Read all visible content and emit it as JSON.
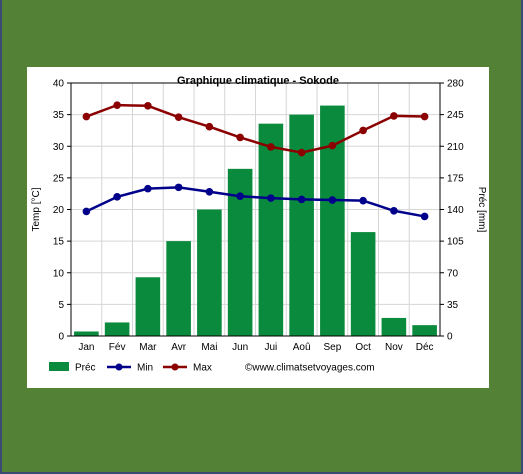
{
  "chart_data": {
    "type": "bar+line",
    "title": "Graphique climatique - Sokode",
    "ylabel_left": "Temp [°C]",
    "ylabel_right": "Préc [mm]",
    "categories": [
      "Jan",
      "Fév",
      "Mar",
      "Avr",
      "Mai",
      "Jun",
      "Jui",
      "Aoû",
      "Sep",
      "Oct",
      "Nov",
      "Déc"
    ],
    "ylim_left": [
      0,
      40
    ],
    "yticks_left": [
      0,
      5,
      10,
      15,
      20,
      25,
      30,
      35,
      40
    ],
    "ylim_right": [
      0,
      280
    ],
    "yticks_right": [
      0,
      35,
      70,
      105,
      140,
      175,
      210,
      245,
      280
    ],
    "grid": true,
    "legend_position": "bottom",
    "series": [
      {
        "name": "Préc",
        "kind": "bar",
        "axis": "right",
        "color": "#0a8a3c",
        "values": [
          5,
          15,
          65,
          105,
          140,
          185,
          235,
          245,
          255,
          115,
          20,
          12
        ]
      },
      {
        "name": "Min",
        "kind": "line",
        "axis": "left",
        "color": "#00008b",
        "values": [
          19.7,
          22.0,
          23.3,
          23.5,
          22.8,
          22.1,
          21.8,
          21.6,
          21.5,
          21.4,
          19.8,
          18.9
        ]
      },
      {
        "name": "Max",
        "kind": "line",
        "axis": "left",
        "color": "#8b0000",
        "values": [
          34.7,
          36.5,
          36.4,
          34.6,
          33.1,
          31.4,
          29.9,
          29.0,
          30.1,
          32.5,
          34.8,
          34.7
        ]
      }
    ],
    "source_label": "©www.climatsetvoyages.com"
  }
}
